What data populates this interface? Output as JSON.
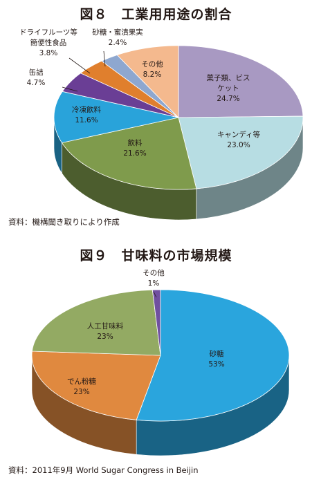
{
  "chart_data": [
    {
      "type": "pie",
      "title": "図８　工業用用途の割合",
      "source": "資料：機構聞き取りにより作成",
      "slices": [
        {
          "label": "菓子類、ビス\nケット",
          "value": 24.7,
          "value_text": "24.7%",
          "color": "#A899C2"
        },
        {
          "label": "キャンディ等",
          "value": 23.0,
          "value_text": "23.0%",
          "color": "#B7DDE3"
        },
        {
          "label": "飲料",
          "value": 21.6,
          "value_text": "21.6%",
          "color": "#7F9B4C"
        },
        {
          "label": "冷凍飲料",
          "value": 11.6,
          "value_text": "11.6%",
          "color": "#29A3DA"
        },
        {
          "label": "缶詰",
          "value": 4.7,
          "value_text": "4.7%",
          "color": "#6A3E95"
        },
        {
          "label": "ドライフルーツ等\n簡便性食品",
          "value": 3.8,
          "value_text": "3.8%",
          "color": "#E07F2D"
        },
        {
          "label": "砂糖・蜜漬果実",
          "value": 2.4,
          "value_text": "2.4%",
          "color": "#8EA7CF"
        },
        {
          "label": "その他",
          "value": 8.2,
          "value_text": "8.2%",
          "color": "#F4B98E"
        }
      ]
    },
    {
      "type": "pie",
      "title": "図９　甘味料の市場規模",
      "source": "資料：2011年9月 World Sugar Congress in Beijin",
      "slices": [
        {
          "label": "砂糖",
          "value": 53,
          "value_text": "53%",
          "color": "#2AA5DD"
        },
        {
          "label": "でん粉糖",
          "value": 23,
          "value_text": "23%",
          "color": "#E0893F"
        },
        {
          "label": "人工甘味料",
          "value": 23,
          "value_text": "23%",
          "color": "#93AA63"
        },
        {
          "label": "その他",
          "value": 1,
          "value_text": "1%",
          "color": "#7050A0"
        }
      ]
    }
  ]
}
